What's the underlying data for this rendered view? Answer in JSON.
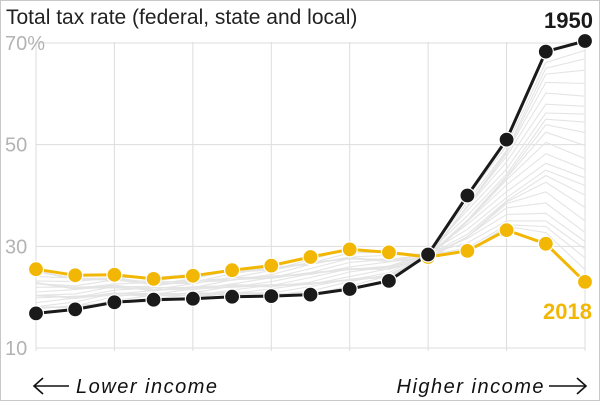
{
  "chart_data": {
    "type": "line",
    "title": "Total tax rate (federal, state and local)",
    "ylim": [
      10,
      72
    ],
    "yticks": [
      {
        "value": 70,
        "label": "70%"
      },
      {
        "value": 50,
        "label": "50"
      },
      {
        "value": 30,
        "label": "30"
      },
      {
        "value": 10,
        "label": "10"
      }
    ],
    "x_start_label": "Lower income",
    "x_end_label": "Higher income",
    "x": [
      1,
      2,
      3,
      4,
      5,
      6,
      7,
      8,
      9,
      10,
      11,
      12,
      13,
      14,
      15
    ],
    "grid": true,
    "series": [
      {
        "name": "1950",
        "color": "#1a1a1a",
        "values": [
          16.8,
          17.6,
          19.0,
          19.5,
          19.7,
          20.1,
          20.2,
          20.5,
          21.6,
          23.2,
          28.4,
          40.0,
          51.0,
          68.3,
          70.4
        ]
      },
      {
        "name": "2018",
        "color": "#f2b705",
        "values": [
          25.5,
          24.3,
          24.4,
          23.6,
          24.2,
          25.3,
          26.2,
          27.9,
          29.4,
          28.8,
          27.9,
          29.1,
          33.2,
          30.5,
          23.0
        ]
      }
    ],
    "background_series_color": "#e4e4e4"
  }
}
